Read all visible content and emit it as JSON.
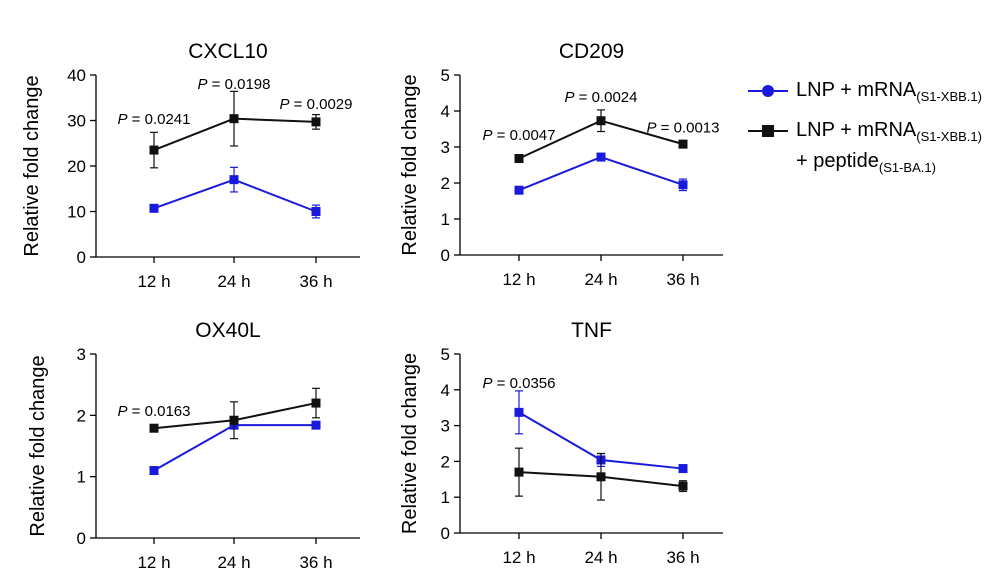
{
  "colors": {
    "series_mrna": "#1a1adc",
    "series_peptide": "#111111",
    "axis": "#000000"
  },
  "legend": {
    "mrna": {
      "label_main": "LNP + mRNA",
      "label_sub": "(S1-XBB.1)",
      "marker_icon": "circle-marker-icon"
    },
    "peptide": {
      "label_main": "LNP + mRNA",
      "label_sub": "(S1-XBB.1)",
      "label_line2_main": "+ peptide",
      "label_line2_sub": "(S1-BA.1)",
      "marker_icon": "square-marker-icon"
    }
  },
  "chart_data": [
    {
      "type": "line",
      "title": "CXCL10",
      "xlabel": "",
      "ylabel": "Relative fold change",
      "categories": [
        "12 h",
        "24 h",
        "36 h"
      ],
      "ylim": [
        0,
        40
      ],
      "yticks": [
        "0",
        "10",
        "20",
        "30",
        "40"
      ],
      "series": [
        {
          "name": "LNP + mRNA (S1-XBB.1)",
          "key": "mrna",
          "values": [
            10.7,
            17.0,
            10.0
          ],
          "errors": [
            0.8,
            2.7,
            1.4
          ]
        },
        {
          "name": "LNP + mRNA (S1-XBB.1) + peptide (S1-BA.1)",
          "key": "peptide",
          "values": [
            23.5,
            30.4,
            29.7
          ],
          "errors": [
            3.9,
            6.0,
            1.6
          ]
        }
      ],
      "annotations": [
        {
          "x": "12 h",
          "y": 29.2,
          "text": "P = 0.0241"
        },
        {
          "x": "24 h",
          "y": 36.9,
          "text": "P = 0.0198"
        },
        {
          "x": "36 h",
          "y": 32.5,
          "text": "P = 0.0029"
        }
      ]
    },
    {
      "type": "line",
      "title": "CD209",
      "xlabel": "",
      "ylabel": "Relative fold change",
      "categories": [
        "12 h",
        "24 h",
        "36 h"
      ],
      "ylim": [
        0,
        5
      ],
      "yticks": [
        "0",
        "1",
        "2",
        "3",
        "4",
        "5"
      ],
      "series": [
        {
          "name": "LNP + mRNA (S1-XBB.1)",
          "key": "mrna",
          "values": [
            1.8,
            2.72,
            1.95
          ],
          "errors": [
            0.06,
            0.1,
            0.16
          ]
        },
        {
          "name": "LNP + mRNA (S1-XBB.1) + peptide (S1-BA.1)",
          "key": "peptide",
          "values": [
            2.68,
            3.73,
            3.08
          ],
          "errors": [
            0.06,
            0.3,
            0.06
          ]
        }
      ],
      "annotations": [
        {
          "x": "12 h",
          "y": 3.2,
          "text": "P = 0.0047"
        },
        {
          "x": "24 h",
          "y": 4.25,
          "text": "P = 0.0024"
        },
        {
          "x": "36 h",
          "y": 3.4,
          "text": "P = 0.0013"
        }
      ]
    },
    {
      "type": "line",
      "title": "OX40L",
      "xlabel": "",
      "ylabel": "Relative fold change",
      "categories": [
        "12 h",
        "24 h",
        "36 h"
      ],
      "ylim": [
        0,
        3
      ],
      "yticks": [
        "0",
        "1",
        "2",
        "3"
      ],
      "series": [
        {
          "name": "LNP + mRNA (S1-XBB.1)",
          "key": "mrna",
          "values": [
            1.1,
            1.84,
            1.84
          ],
          "errors": [
            0.02,
            0.03,
            0.02
          ]
        },
        {
          "name": "LNP + mRNA (S1-XBB.1) + peptide (S1-BA.1)",
          "key": "peptide",
          "values": [
            1.79,
            1.92,
            2.2
          ],
          "errors": [
            0.05,
            0.3,
            0.24
          ]
        }
      ],
      "annotations": [
        {
          "x": "12 h",
          "y": 1.99,
          "text": "P = 0.0163"
        }
      ]
    },
    {
      "type": "line",
      "title": "TNF",
      "xlabel": "",
      "ylabel": "Relative fold change",
      "categories": [
        "12 h",
        "24 h",
        "36 h"
      ],
      "ylim": [
        0,
        5
      ],
      "yticks": [
        "0",
        "1",
        "2",
        "3",
        "4",
        "5"
      ],
      "series": [
        {
          "name": "LNP + mRNA (S1-XBB.1)",
          "key": "mrna",
          "values": [
            3.37,
            2.04,
            1.8
          ],
          "errors": [
            0.6,
            0.18,
            0.05
          ]
        },
        {
          "name": "LNP + mRNA (S1-XBB.1) + peptide (S1-BA.1)",
          "key": "peptide",
          "values": [
            1.7,
            1.57,
            1.31
          ],
          "errors": [
            0.67,
            0.65,
            0.15
          ]
        }
      ],
      "annotations": [
        {
          "x": "12 h",
          "y": 4.05,
          "text": "P = 0.0356"
        }
      ]
    }
  ]
}
